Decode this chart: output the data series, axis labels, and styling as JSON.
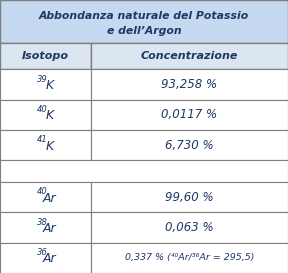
{
  "title_line1": "Abbondanza naturale del Potassio",
  "title_line2": "e dell’Argon",
  "header_col1": "Isotopo",
  "header_col2": "Concentrazione",
  "rows": [
    {
      "isotope_sup": "39",
      "isotope_base": "K",
      "concentration": "93,258 %"
    },
    {
      "isotope_sup": "40",
      "isotope_base": "K",
      "concentration": "0,0117 %"
    },
    {
      "isotope_sup": "41",
      "isotope_base": "K",
      "concentration": "6,730 %"
    },
    {
      "isotope_sup": "",
      "isotope_base": "",
      "concentration": ""
    },
    {
      "isotope_sup": "40",
      "isotope_base": "Ar",
      "concentration": "99,60 %"
    },
    {
      "isotope_sup": "38",
      "isotope_base": "Ar",
      "concentration": "0,063 %"
    },
    {
      "isotope_sup": "36",
      "isotope_base": "Ar",
      "concentration": "0,337 % (⁴⁰Ar/³⁶Ar = 295,5)"
    }
  ],
  "title_bg": "#c5d9f1",
  "header_bg": "#dce6f1",
  "row_bg": "#ffffff",
  "border_color": "#7f7f7f",
  "text_color": "#1f3864",
  "col_split": 0.315,
  "title_fontsize": 7.8,
  "header_fontsize": 8.0,
  "data_fontsize": 8.5,
  "data_fontsize_last": 6.8,
  "sup_fontsize": 6.0,
  "base_fontsize": 9.0
}
